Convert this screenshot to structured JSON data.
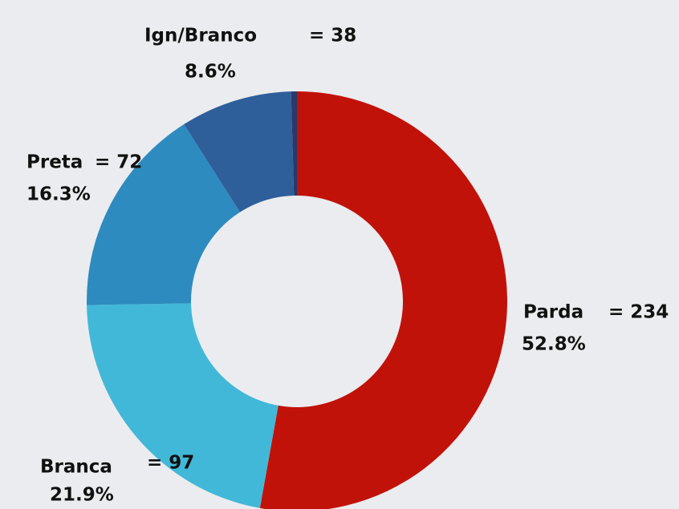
{
  "chart_data": {
    "type": "donut",
    "categories": [
      "Parda",
      "Branca",
      "Preta",
      "Ign/Branco",
      null
    ],
    "values": [
      234,
      97,
      72,
      38,
      2
    ],
    "value_labels": [
      "= 234",
      "= 97",
      "= 72",
      "= 38",
      null
    ],
    "percent_labels": [
      "52.8%",
      "21.9%",
      "16.3%",
      "8.6%",
      null
    ],
    "colors": [
      "#c1120a",
      "#42b8d8",
      "#2e8bbf",
      "#2e5f9a",
      "#283a6b"
    ]
  }
}
